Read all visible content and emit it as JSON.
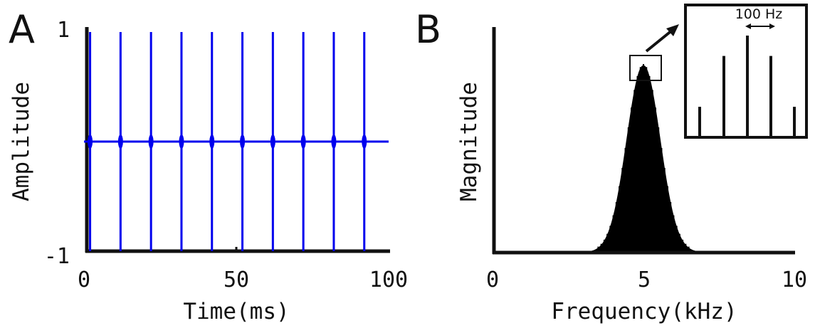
{
  "chart_data": [
    {
      "panel": "A",
      "type": "line",
      "xlabel": "Time(ms)",
      "ylabel": "Amplitude",
      "xlim": [
        0,
        100
      ],
      "ylim": [
        -1,
        1
      ],
      "xticks": [
        "0",
        "50",
        "100"
      ],
      "yticks": [
        "-1",
        "1"
      ],
      "series": [
        {
          "color": "#0000ee",
          "baseline": 0,
          "pulse_times_ms": [
            2,
            12,
            22,
            32,
            42,
            52,
            62,
            72,
            82,
            92
          ],
          "pulse_peak": 1,
          "pulse_trough": -1
        }
      ],
      "x_extent": [
        0,
        100
      ]
    },
    {
      "panel": "B",
      "type": "bar",
      "xlabel": "Frequency(kHz)",
      "ylabel": "Magnitude",
      "xlim": [
        0,
        10
      ],
      "xticks": [
        "0",
        "5",
        "10"
      ],
      "yticks": [],
      "harmonic_spacing_hz": 100,
      "envelope": {
        "center_khz": 5.0,
        "width_khz": 0.55,
        "peak": 1.0
      },
      "color": "#000000",
      "inset": {
        "label": "100 Hz",
        "lines": [
          0.3,
          0.8,
          1.0,
          0.8,
          0.3
        ]
      }
    }
  ],
  "labels": {
    "panel_a": "A",
    "panel_b": "B"
  }
}
